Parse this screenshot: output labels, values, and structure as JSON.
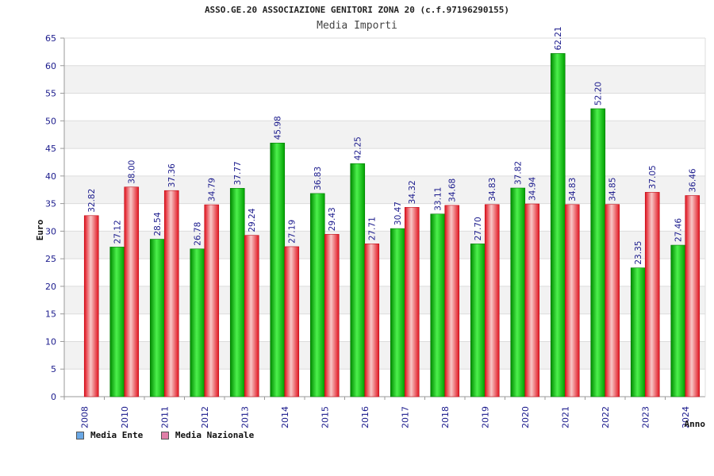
{
  "chart_data": {
    "type": "bar",
    "title": "ASSO.GE.20 ASSOCIAZIONE GENITORI ZONA 20 (c.f.97196290155)",
    "subtitle": "Media Importi",
    "xlabel": "Anno",
    "ylabel": "Euro",
    "ylim": [
      0,
      65
    ],
    "yticks": [
      0,
      5,
      10,
      15,
      20,
      25,
      30,
      35,
      40,
      45,
      50,
      55,
      60,
      65
    ],
    "grid": true,
    "legend_position": "bottom-left",
    "categories": [
      "2008",
      "2010",
      "2011",
      "2012",
      "2013",
      "2014",
      "2015",
      "2016",
      "2017",
      "2018",
      "2019",
      "2020",
      "2021",
      "2022",
      "2023",
      "2024"
    ],
    "series": [
      {
        "name": "Media Ente",
        "color": "#00b000",
        "legend_color": "#6aa8e6",
        "values": [
          null,
          27.12,
          28.54,
          26.78,
          37.77,
          45.98,
          36.83,
          42.25,
          30.47,
          33.11,
          27.7,
          37.82,
          62.21,
          52.2,
          23.35,
          27.46
        ],
        "labels": [
          "",
          "27.12",
          "28.54",
          "26.78",
          "37.77",
          "45.98",
          "36.83",
          "42.25",
          "30.47",
          "33.11",
          "27.70",
          "37.82",
          "62.21",
          "52.20",
          "23.35",
          "27.46"
        ]
      },
      {
        "name": "Media Nazionale",
        "color": "#e8202a",
        "legend_color": "#e07fa8",
        "values": [
          32.82,
          38.0,
          37.36,
          34.79,
          29.24,
          27.19,
          29.43,
          27.71,
          34.32,
          34.68,
          34.83,
          34.94,
          34.83,
          34.85,
          37.05,
          36.46
        ],
        "labels": [
          "32.82",
          "38.00",
          "37.36",
          "34.79",
          "29.24",
          "27.19",
          "29.43",
          "27.71",
          "34.32",
          "34.68",
          "34.83",
          "34.94",
          "34.83",
          "34.85",
          "37.05",
          "36.46"
        ]
      }
    ]
  }
}
